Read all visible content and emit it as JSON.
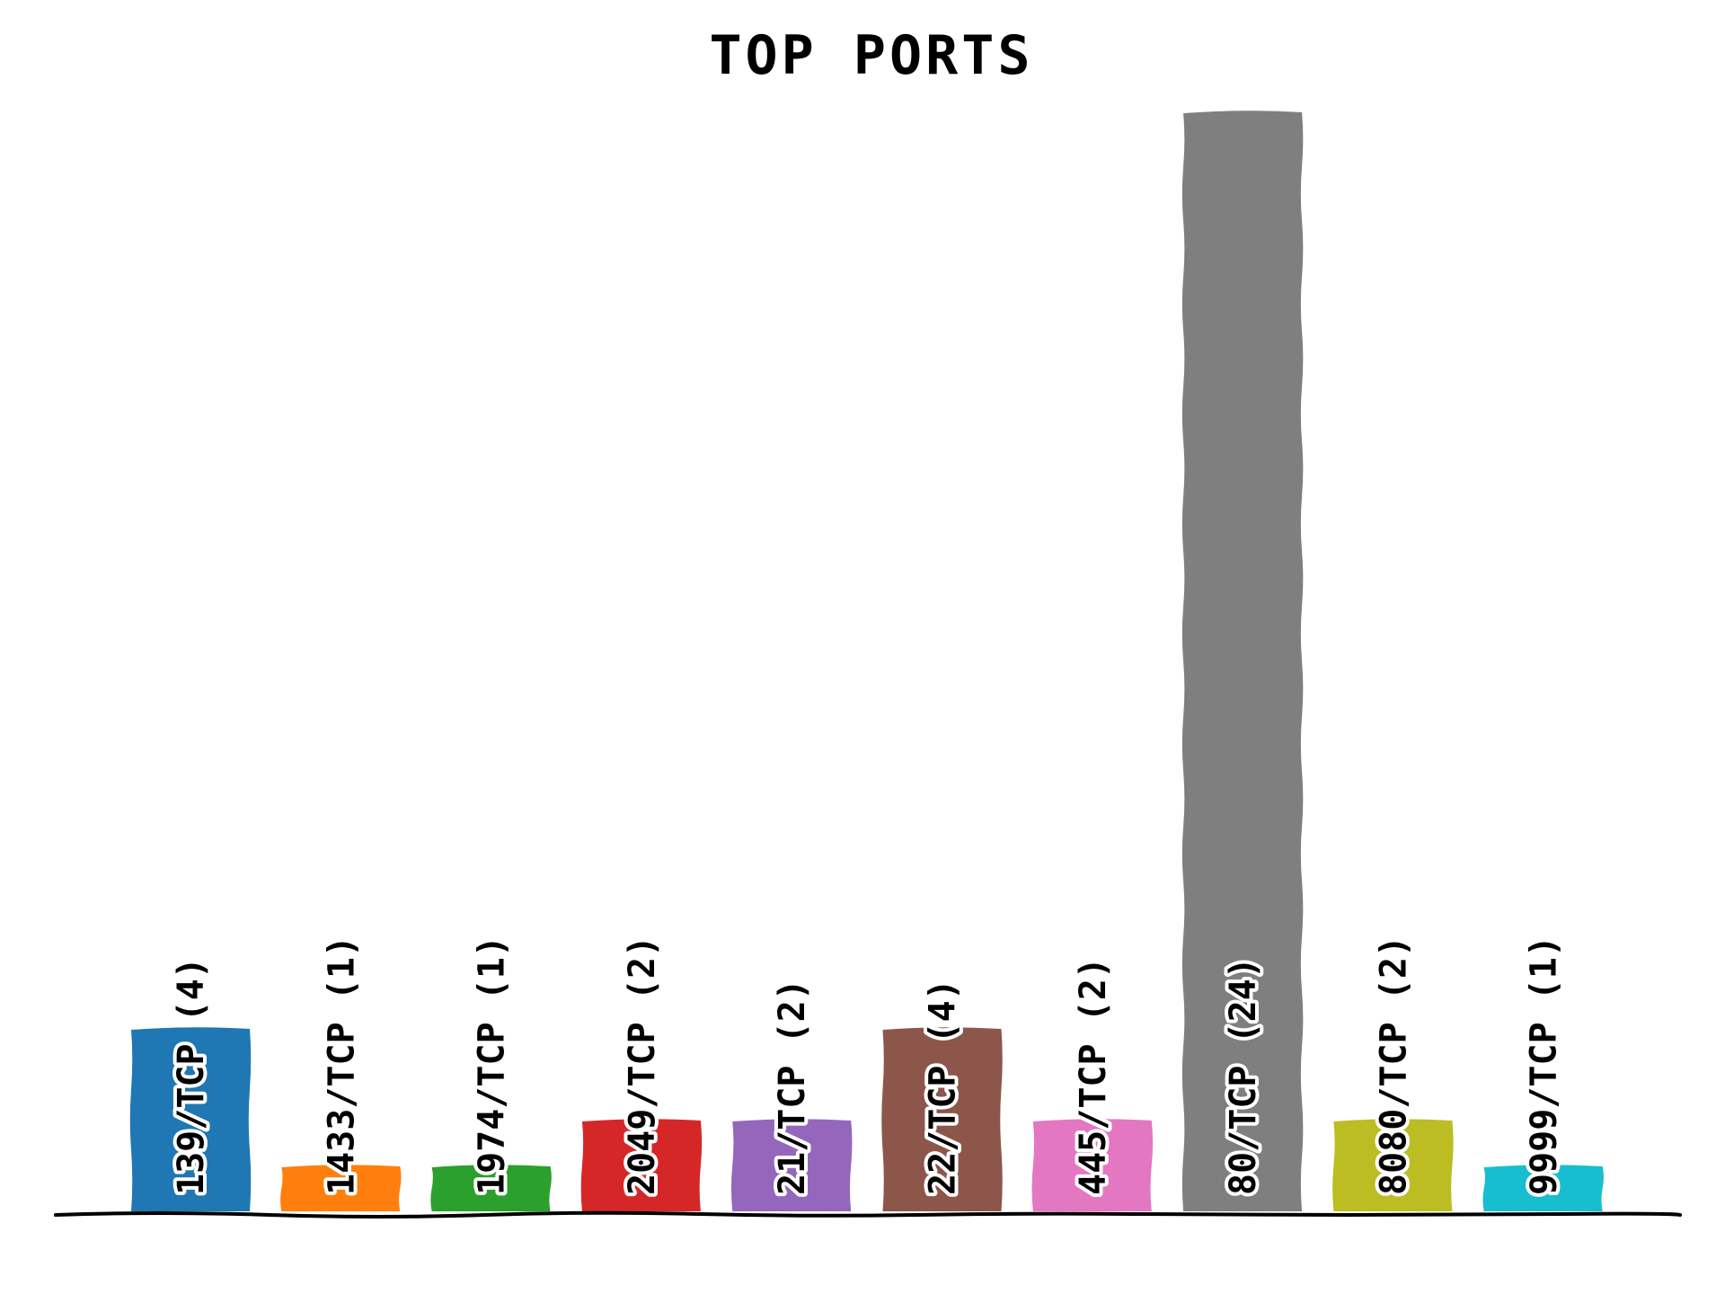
{
  "chart_data": {
    "type": "bar",
    "title": "TOP PORTS",
    "xlabel": "",
    "ylabel": "",
    "categories": [
      "139/TCP",
      "1433/TCP",
      "1974/TCP",
      "2049/TCP",
      "21/TCP",
      "22/TCP",
      "445/TCP",
      "80/TCP",
      "8080/TCP",
      "9999/TCP"
    ],
    "values": [
      4,
      1,
      1,
      2,
      2,
      4,
      2,
      24,
      2,
      1
    ],
    "labels": [
      "139/TCP (4)",
      "1433/TCP (1)",
      "1974/TCP (1)",
      "2049/TCP (2)",
      "21/TCP (2)",
      "22/TCP (4)",
      "445/TCP (2)",
      "80/TCP (24)",
      "8080/TCP (2)",
      "9999/TCP (1)"
    ],
    "colors": [
      "#1f77b4",
      "#ff7f0e",
      "#2ca02c",
      "#d62728",
      "#9467bd",
      "#8c564b",
      "#e377c2",
      "#7f7f7f",
      "#bcbd22",
      "#17becf"
    ],
    "ylim": [
      0,
      24
    ],
    "grid": false,
    "legend": "none"
  }
}
